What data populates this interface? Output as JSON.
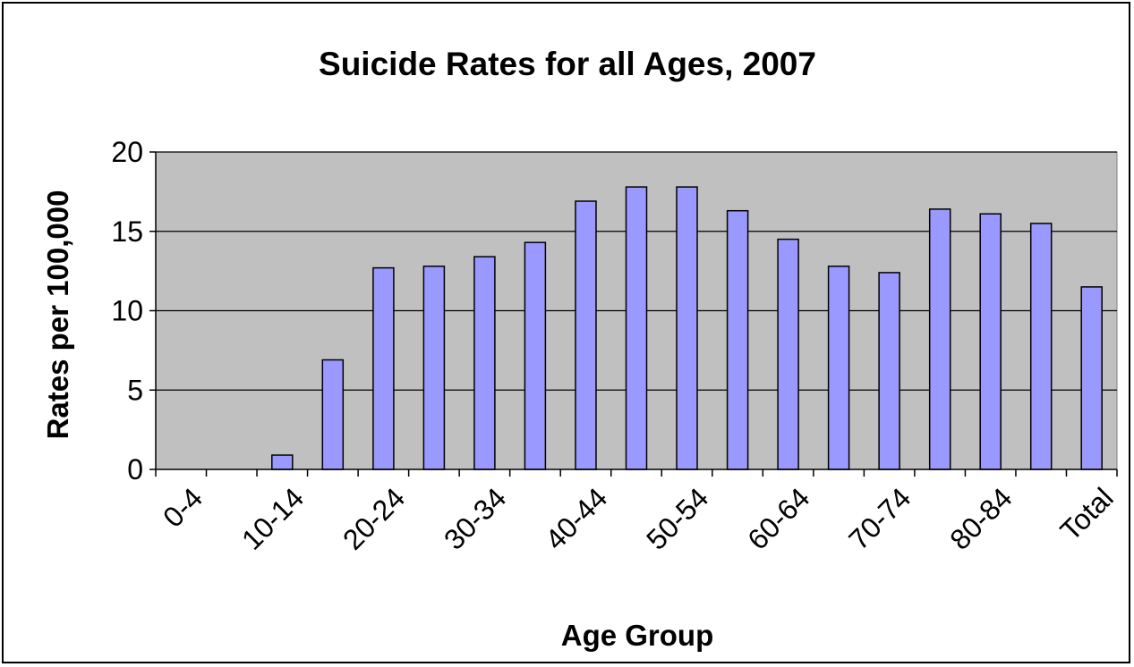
{
  "chart_data": {
    "type": "bar",
    "title": "Suicide Rates for all Ages, 2007",
    "xlabel": "Age Group",
    "ylabel": "Rates per 100,000",
    "ylim": [
      0,
      20
    ],
    "yticks": [
      0,
      5,
      10,
      15,
      20
    ],
    "categories": [
      "0-4",
      "5-9",
      "10-14",
      "15-19",
      "20-24",
      "25-29",
      "30-34",
      "35-39",
      "40-44",
      "45-49",
      "50-54",
      "55-59",
      "60-64",
      "65-69",
      "70-74",
      "75-79",
      "80-84",
      "85+",
      "Total"
    ],
    "visible_category_labels": [
      "0-4",
      "10-14",
      "20-24",
      "30-34",
      "40-44",
      "50-54",
      "60-64",
      "70-74",
      "80-84",
      "Total"
    ],
    "values": [
      0.0,
      0.0,
      0.9,
      6.9,
      12.7,
      12.8,
      13.4,
      14.3,
      16.9,
      17.8,
      17.8,
      16.3,
      14.5,
      12.8,
      12.4,
      16.4,
      16.1,
      15.5,
      11.5
    ],
    "grid": true,
    "legend": "none",
    "colors": {
      "bar_fill": "#9999FF",
      "bar_stroke": "#000000",
      "plot_background": "#C0C0C0",
      "gridline": "#000000"
    }
  }
}
